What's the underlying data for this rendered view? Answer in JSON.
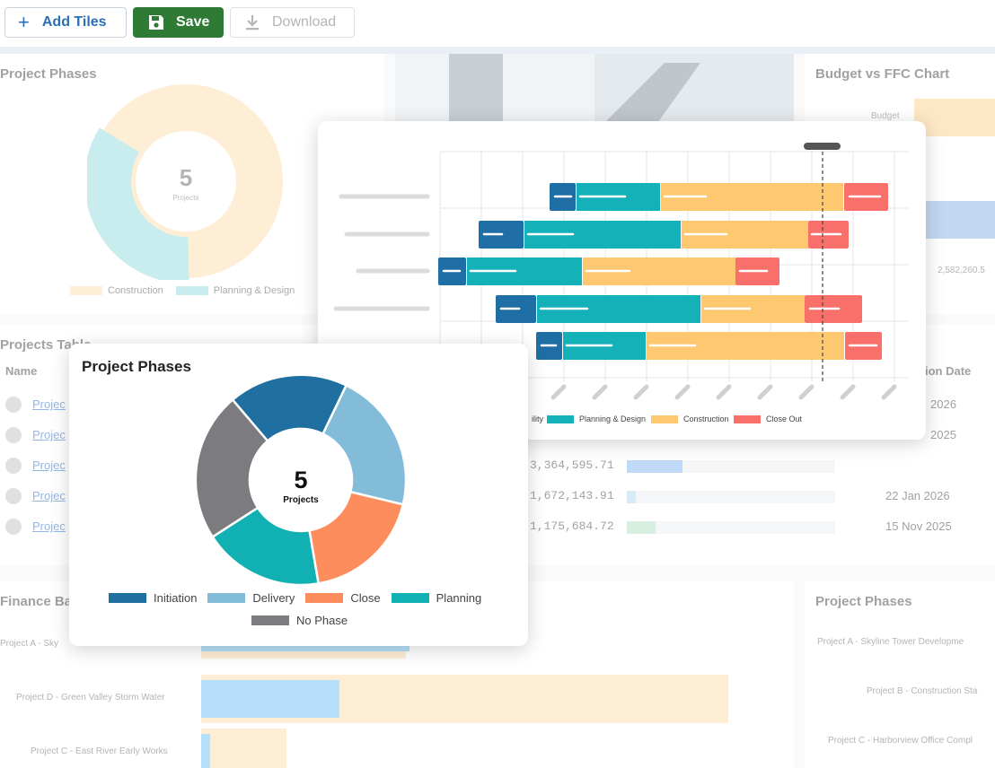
{
  "toolbar": {
    "add_tiles_label": "Add Tiles",
    "save_label": "Save",
    "download_label": "Download"
  },
  "background": {
    "project_phases_tile": {
      "title": "Project Phases",
      "center_value": "5",
      "center_label": "Projects",
      "legend": [
        "Construction",
        "Planning & Design"
      ]
    },
    "budget_tile": {
      "title": "Budget vs FFC Chart",
      "budget_label": "Budget",
      "value_text": "2,582,260.5"
    },
    "projects_table": {
      "title": "Projects Table",
      "col_name": "Name",
      "col_date": "ion Date",
      "rows": [
        {
          "name": "Projec",
          "amount": "",
          "date": "2026"
        },
        {
          "name": "Projec",
          "amount": "",
          "date": "2025"
        },
        {
          "name": "Projec",
          "amount": "3,364,595.71",
          "date": ""
        },
        {
          "name": "Projec",
          "amount": "1,672,143.91",
          "date": "22 Jan 2026"
        },
        {
          "name": "Projec",
          "amount": "1,175,684.72",
          "date": "15 Nov 2025"
        }
      ]
    },
    "finance_tile": {
      "title": "Finance Ba",
      "rows": [
        "Project A - Sky",
        "Project D - Green Valley Storm Water",
        "Project C - East River Early Works"
      ]
    },
    "phases_tile_2": {
      "title": "Project Phases",
      "rows": [
        "Project A - Skyline Tower Developme",
        "Project B - Construction Sta",
        "Project C - Harborview Office Compl"
      ]
    }
  },
  "gantt": {
    "legend": [
      {
        "label": "ility",
        "color": "#1f6fa6"
      },
      {
        "label": "Planning & Design",
        "color": "#15b1b8"
      },
      {
        "label": "Construction",
        "color": "#fdc870"
      },
      {
        "label": "Close Out",
        "color": "#f87069"
      }
    ]
  },
  "donut": {
    "title": "Project Phases",
    "center_value": "5",
    "center_label": "Projects",
    "legend": [
      {
        "label": "Initiation",
        "color": "#1f6fa0"
      },
      {
        "label": "Delivery",
        "color": "#83bcd8"
      },
      {
        "label": "Close",
        "color": "#fe8d5d"
      },
      {
        "label": "Planning",
        "color": "#10b0b3"
      },
      {
        "label": "No Phase",
        "color": "#7c7c80"
      }
    ]
  },
  "colors": {
    "save_green": "#2f7a35",
    "accent_blue": "#2d6fb6"
  }
}
